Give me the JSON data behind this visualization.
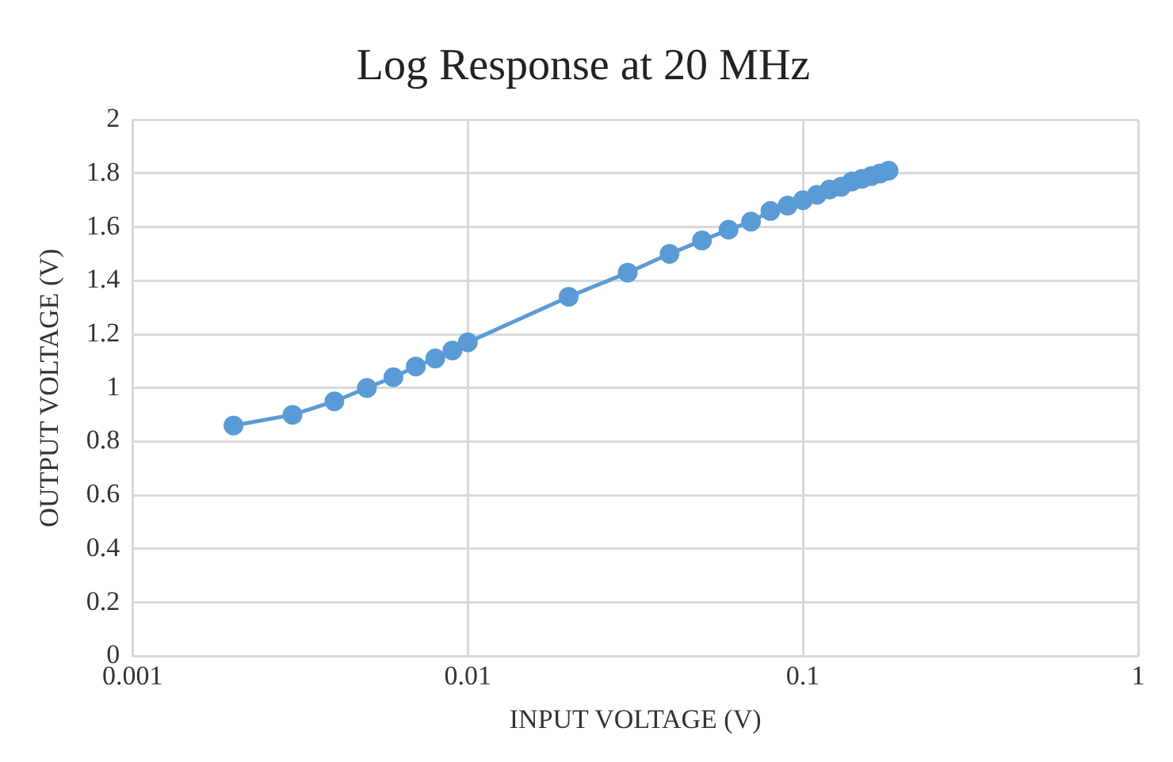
{
  "chart_data": {
    "type": "line",
    "title": "Log Response at 20 MHz",
    "xlabel": "INPUT VOLTAGE (V)",
    "ylabel": "OUTPUT VOLTAGE (V)",
    "log": "x",
    "grid": true,
    "marker": "circle",
    "line_style": "solid",
    "x": [
      0.002,
      0.003,
      0.004,
      0.005,
      0.006,
      0.007,
      0.008,
      0.009,
      0.01,
      0.02,
      0.03,
      0.04,
      0.05,
      0.06,
      0.07,
      0.08,
      0.09,
      0.1,
      0.11,
      0.12,
      0.13,
      0.14,
      0.15,
      0.16,
      0.17,
      0.18
    ],
    "series": [
      {
        "color": "#5b9bd5",
        "values": [
          0.86,
          0.9,
          0.95,
          1.0,
          1.04,
          1.08,
          1.11,
          1.14,
          1.17,
          1.34,
          1.43,
          1.5,
          1.55,
          1.59,
          1.62,
          1.66,
          1.68,
          1.7,
          1.72,
          1.74,
          1.75,
          1.77,
          1.78,
          1.79,
          1.8,
          1.81
        ]
      }
    ],
    "xlim": [
      0.001,
      1
    ],
    "xticks": [
      0.001,
      0.01,
      0.1,
      1
    ],
    "ylim": [
      0,
      2
    ],
    "yticks": [
      0,
      0.2,
      0.4,
      0.6,
      0.8,
      1,
      1.2,
      1.4,
      1.6,
      1.8,
      2
    ]
  }
}
